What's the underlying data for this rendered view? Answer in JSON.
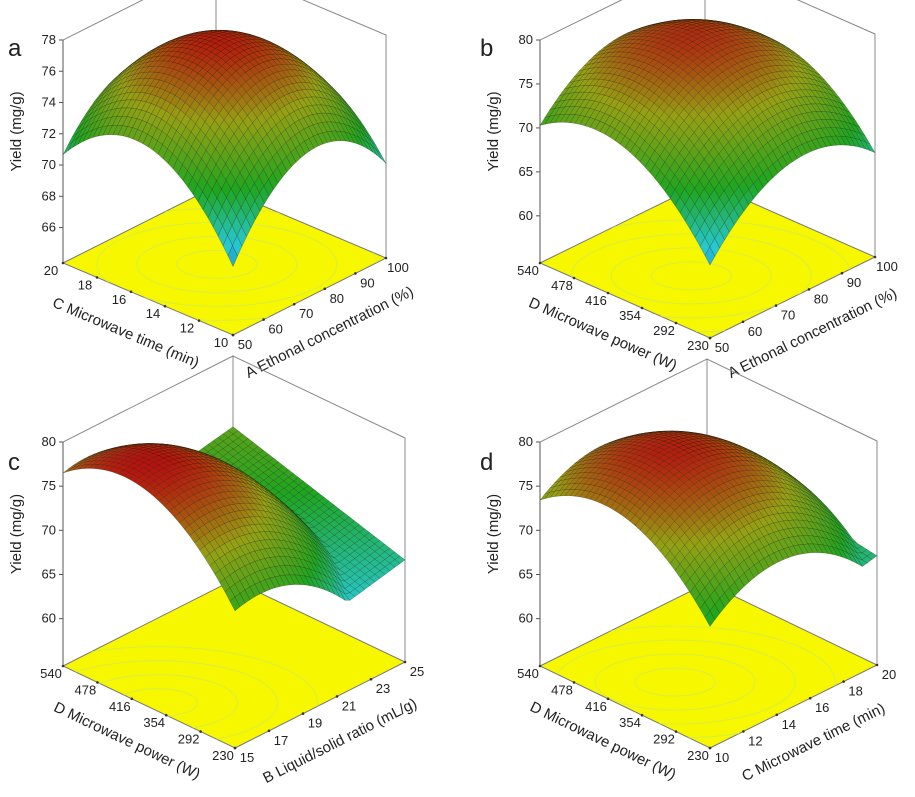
{
  "chart_data": [
    {
      "type": "surface",
      "panel_label": "a",
      "z_label": "Yield (mg/g)",
      "z_ticks": [
        "66",
        "68",
        "70",
        "72",
        "74",
        "76",
        "78"
      ],
      "z_range": [
        64.5,
        78
      ],
      "left_label": "C Microwave time (min)",
      "left_ticks": [
        "20",
        "18",
        "16",
        "14",
        "12",
        "10"
      ],
      "right_label": "A Ethonal concentration (%)",
      "right_ticks": [
        "50",
        "60",
        "70",
        "80",
        "90",
        "100"
      ],
      "surface": {
        "corner_back": 68.2,
        "corner_right": 68.6,
        "corner_front": 65.3,
        "peak": 77.6,
        "peak_at": [
          0.45,
          0.5
        ]
      },
      "colors": {
        "floor": "#f7f700",
        "low": "#0000c8",
        "mid": "#1fa51f",
        "high": "#b80c0c"
      }
    },
    {
      "type": "surface",
      "panel_label": "b",
      "z_label": "Yield (mg/g)",
      "z_ticks": [
        "60",
        "65",
        "70",
        "75",
        "80"
      ],
      "z_range": [
        56,
        80
      ],
      "left_label": "D Microwave power (W)",
      "left_ticks": [
        "540",
        "478",
        "416",
        "354",
        "292",
        "230"
      ],
      "right_label": "A Ethonal concentration (%)",
      "right_ticks": [
        "50",
        "60",
        "70",
        "80",
        "90",
        "100"
      ],
      "surface": {
        "corner_back": 73.0,
        "corner_right": 66.5,
        "corner_front": 56.5,
        "peak": 77.2,
        "peak_at": [
          0.35,
          0.45
        ]
      },
      "colors": {
        "floor": "#f7f700",
        "low": "#0000c8",
        "mid": "#1fa51f",
        "high": "#b80c0c"
      }
    },
    {
      "type": "surface",
      "panel_label": "c",
      "z_label": "Yield (mg/g)",
      "z_ticks": [
        "60",
        "65",
        "70",
        "75",
        "80"
      ],
      "z_range": [
        56,
        80
      ],
      "left_label": "D Microwave power (W)",
      "left_ticks": [
        "540",
        "478",
        "416",
        "354",
        "292",
        "230"
      ],
      "right_label": "B Liquid/solid ratio (mL/g)",
      "right_ticks": [
        "15",
        "17",
        "19",
        "21",
        "23",
        "25"
      ],
      "surface": {
        "corner_back": 72.0,
        "corner_right": 66.2,
        "corner_front": 61.8,
        "peak": 79.2,
        "peak_at": [
          0.05,
          0.5
        ]
      },
      "colors": {
        "floor": "#f7f700",
        "low": "#0000c8",
        "mid": "#1fa51f",
        "high": "#b80c0c"
      }
    },
    {
      "type": "surface",
      "panel_label": "d",
      "z_label": "Yield (mg/g)",
      "z_ticks": [
        "60",
        "65",
        "70",
        "75",
        "80"
      ],
      "z_range": [
        56,
        80
      ],
      "left_label": "D Microwave power (W)",
      "left_ticks": [
        "540",
        "478",
        "416",
        "354",
        "292",
        "230"
      ],
      "right_label": "C Microwave time (min)",
      "right_ticks": [
        "10",
        "12",
        "14",
        "16",
        "18",
        "20"
      ],
      "surface": {
        "corner_back": 70.0,
        "corner_right": 67.0,
        "corner_front": 62.5,
        "peak": 79.0,
        "peak_at": [
          0.3,
          0.5
        ]
      },
      "colors": {
        "floor": "#f7f700",
        "low": "#0000c8",
        "mid": "#1fa51f",
        "high": "#b80c0c"
      }
    }
  ]
}
